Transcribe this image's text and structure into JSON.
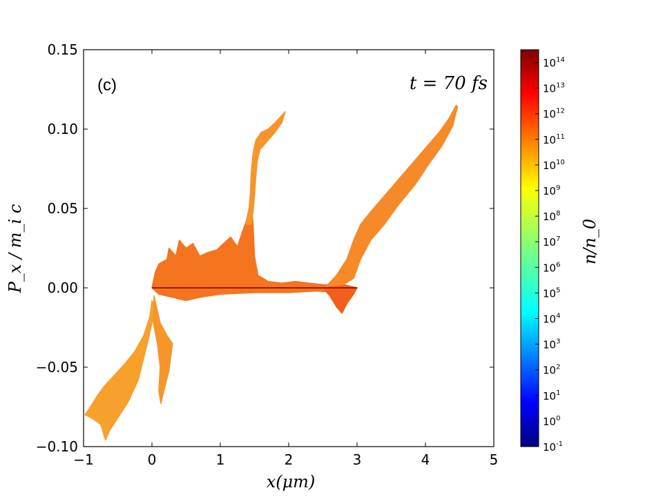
{
  "chart_data": {
    "type": "scatter",
    "panel_label": "(c)",
    "annotation": "t = 70 fs",
    "xlabel": "x(μm)",
    "ylabel": "P_x / m_i c",
    "xlim": [
      -1,
      5
    ],
    "ylim": [
      -0.1,
      0.15
    ],
    "x_ticks": [
      -1,
      0,
      1,
      2,
      3,
      4,
      5
    ],
    "x_tick_labels": [
      "−1",
      "0",
      "1",
      "2",
      "3",
      "4",
      "5"
    ],
    "y_ticks": [
      -0.1,
      -0.05,
      0.0,
      0.05,
      0.1,
      0.15
    ],
    "y_tick_labels": [
      "−0.10",
      "−0.05",
      "0.00",
      "0.05",
      "0.10",
      "0.15"
    ],
    "colorbar": {
      "label": "n/n_0",
      "scale": "log",
      "min_exp": -1,
      "max_exp": 14.5,
      "tick_exponents": [
        -1,
        0,
        1,
        2,
        3,
        4,
        5,
        6,
        7,
        8,
        9,
        10,
        11,
        12,
        13,
        14
      ],
      "tick_base": "10",
      "colormap": "jet"
    },
    "regions": [
      {
        "name": "left-expansion-lobe",
        "color": "#f7a02c",
        "polygon": [
          [
            -0.98,
            -0.08
          ],
          [
            -0.9,
            -0.075
          ],
          [
            -0.8,
            -0.068
          ],
          [
            -0.7,
            -0.062
          ],
          [
            -0.55,
            -0.055
          ],
          [
            -0.4,
            -0.048
          ],
          [
            -0.25,
            -0.04
          ],
          [
            -0.12,
            -0.03
          ],
          [
            -0.03,
            -0.018
          ],
          [
            0.0,
            -0.008
          ],
          [
            0.05,
            -0.012
          ],
          [
            -0.05,
            -0.032
          ],
          [
            -0.2,
            -0.058
          ],
          [
            -0.35,
            -0.072
          ],
          [
            -0.5,
            -0.082
          ],
          [
            -0.62,
            -0.09
          ],
          [
            -0.68,
            -0.096
          ],
          [
            -0.75,
            -0.086
          ],
          [
            -0.88,
            -0.082
          ]
        ]
      },
      {
        "name": "left-spike",
        "color": "#f6952a",
        "polygon": [
          [
            0.03,
            -0.005
          ],
          [
            0.12,
            -0.022
          ],
          [
            0.22,
            -0.03
          ],
          [
            0.3,
            -0.035
          ],
          [
            0.25,
            -0.052
          ],
          [
            0.18,
            -0.064
          ],
          [
            0.13,
            -0.073
          ],
          [
            0.1,
            -0.065
          ],
          [
            0.12,
            -0.05
          ],
          [
            0.08,
            -0.035
          ],
          [
            0.02,
            -0.022
          ]
        ]
      },
      {
        "name": "upper-turbulent-layer",
        "color": "#f4741f",
        "polygon": [
          [
            0.0,
            0.0
          ],
          [
            0.05,
            0.01
          ],
          [
            0.1,
            0.015
          ],
          [
            0.22,
            0.018
          ],
          [
            0.25,
            0.025
          ],
          [
            0.35,
            0.02
          ],
          [
            0.4,
            0.03
          ],
          [
            0.5,
            0.025
          ],
          [
            0.6,
            0.028
          ],
          [
            0.7,
            0.02
          ],
          [
            0.8,
            0.022
          ],
          [
            0.95,
            0.024
          ],
          [
            1.05,
            0.028
          ],
          [
            1.15,
            0.032
          ],
          [
            1.25,
            0.026
          ],
          [
            1.32,
            0.035
          ],
          [
            1.38,
            0.042
          ],
          [
            1.42,
            0.05
          ],
          [
            1.45,
            0.055
          ],
          [
            1.48,
            0.04
          ],
          [
            1.5,
            0.02
          ],
          [
            1.55,
            0.008
          ],
          [
            1.7,
            0.004
          ],
          [
            1.9,
            0.003
          ],
          [
            2.1,
            0.004
          ],
          [
            2.3,
            0.003
          ],
          [
            2.5,
            0.002
          ],
          [
            2.7,
            0.002
          ],
          [
            2.8,
            0.001
          ],
          [
            3.0,
            0.0
          ],
          [
            2.7,
            -0.003
          ],
          [
            2.4,
            -0.002
          ],
          [
            2.0,
            -0.003
          ],
          [
            1.5,
            -0.003
          ],
          [
            1.0,
            -0.004
          ],
          [
            0.7,
            -0.006
          ],
          [
            0.5,
            -0.008
          ],
          [
            0.3,
            -0.006
          ],
          [
            0.1,
            -0.004
          ]
        ]
      },
      {
        "name": "lower-turbulent-layer",
        "color": "#f0601c",
        "polygon": [
          [
            2.5,
            0.0
          ],
          [
            2.6,
            -0.005
          ],
          [
            2.7,
            -0.012
          ],
          [
            2.78,
            -0.016
          ],
          [
            2.85,
            -0.01
          ],
          [
            2.95,
            -0.004
          ],
          [
            3.0,
            0.0
          ],
          [
            2.8,
            0.002
          ]
        ]
      },
      {
        "name": "right-ramp",
        "color": "#f68a28",
        "polygon": [
          [
            2.55,
            0.001
          ],
          [
            2.7,
            0.008
          ],
          [
            2.85,
            0.018
          ],
          [
            2.95,
            0.03
          ],
          [
            3.05,
            0.04
          ],
          [
            3.2,
            0.048
          ],
          [
            3.4,
            0.058
          ],
          [
            3.6,
            0.068
          ],
          [
            3.8,
            0.078
          ],
          [
            4.0,
            0.088
          ],
          [
            4.2,
            0.098
          ],
          [
            4.35,
            0.107
          ],
          [
            4.45,
            0.115
          ],
          [
            4.47,
            0.114
          ],
          [
            4.4,
            0.102
          ],
          [
            4.25,
            0.09
          ],
          [
            4.05,
            0.078
          ],
          [
            3.85,
            0.065
          ],
          [
            3.6,
            0.052
          ],
          [
            3.4,
            0.04
          ],
          [
            3.2,
            0.03
          ],
          [
            3.05,
            0.018
          ],
          [
            2.95,
            0.006
          ],
          [
            2.8,
            0.002
          ]
        ]
      },
      {
        "name": "upper-jet",
        "color": "#f6952a",
        "polygon": [
          [
            1.38,
            0.04
          ],
          [
            1.42,
            0.05
          ],
          [
            1.44,
            0.06
          ],
          [
            1.45,
            0.072
          ],
          [
            1.48,
            0.085
          ],
          [
            1.52,
            0.093
          ],
          [
            1.6,
            0.098
          ],
          [
            1.7,
            0.1
          ],
          [
            1.8,
            0.104
          ],
          [
            1.95,
            0.111
          ],
          [
            1.9,
            0.104
          ],
          [
            1.8,
            0.098
          ],
          [
            1.68,
            0.092
          ],
          [
            1.58,
            0.087
          ],
          [
            1.54,
            0.08
          ],
          [
            1.52,
            0.07
          ],
          [
            1.5,
            0.058
          ],
          [
            1.48,
            0.048
          ],
          [
            1.45,
            0.04
          ]
        ]
      }
    ],
    "lines": [
      {
        "name": "target-core-line",
        "color": "#a0150f",
        "x": [
          0.0,
          3.0
        ],
        "y": [
          0.0,
          0.0
        ]
      }
    ]
  }
}
